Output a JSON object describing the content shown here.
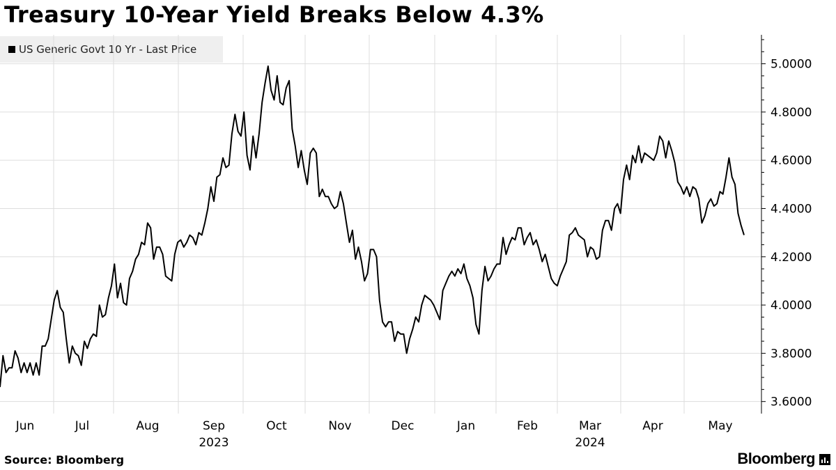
{
  "title": "Treasury 10-Year Yield Breaks Below 4.3%",
  "legend": {
    "label": "US Generic Govt 10 Yr - Last Price",
    "color": "#000000"
  },
  "footer": {
    "source": "Source: Bloomberg",
    "brand": "Bloomberg",
    "brand_icon": "bloomberg-logo-icon"
  },
  "chart_data": {
    "type": "line",
    "title": "Treasury 10-Year Yield Breaks Below 4.3%",
    "xlabel": "",
    "ylabel": "",
    "ylim": [
      3.55,
      5.12
    ],
    "y_ticks": [
      "3.6000",
      "3.8000",
      "4.0000",
      "4.2000",
      "4.4000",
      "4.6000",
      "4.8000",
      "5.0000"
    ],
    "x_ticks": [
      "Jun",
      "Jul",
      "Aug",
      "Sep",
      "Oct",
      "Nov",
      "Dec",
      "Jan",
      "Feb",
      "Mar",
      "Apr",
      "May"
    ],
    "year_labels": [
      {
        "label": "2023",
        "month": "Sep"
      },
      {
        "label": "2024",
        "month": "Mar"
      }
    ],
    "grid": true,
    "legend_position": "top-left",
    "series": [
      {
        "name": "US Generic Govt 10 Yr - Last Price",
        "color": "#000000",
        "values": [
          3.66,
          3.79,
          3.72,
          3.74,
          3.74,
          3.81,
          3.78,
          3.72,
          3.76,
          3.72,
          3.76,
          3.71,
          3.76,
          3.71,
          3.83,
          3.83,
          3.86,
          3.94,
          4.02,
          4.06,
          3.99,
          3.97,
          3.86,
          3.76,
          3.83,
          3.8,
          3.79,
          3.75,
          3.85,
          3.82,
          3.86,
          3.88,
          3.87,
          4.0,
          3.95,
          3.96,
          4.03,
          4.08,
          4.17,
          4.03,
          4.09,
          4.01,
          4.0,
          4.11,
          4.14,
          4.19,
          4.21,
          4.26,
          4.25,
          4.34,
          4.32,
          4.19,
          4.24,
          4.24,
          4.21,
          4.12,
          4.11,
          4.1,
          4.21,
          4.26,
          4.27,
          4.24,
          4.26,
          4.29,
          4.28,
          4.25,
          4.3,
          4.29,
          4.34,
          4.4,
          4.49,
          4.43,
          4.53,
          4.54,
          4.61,
          4.57,
          4.58,
          4.71,
          4.79,
          4.72,
          4.7,
          4.8,
          4.62,
          4.56,
          4.7,
          4.61,
          4.71,
          4.84,
          4.92,
          4.99,
          4.89,
          4.85,
          4.95,
          4.84,
          4.83,
          4.9,
          4.93,
          4.73,
          4.66,
          4.57,
          4.64,
          4.56,
          4.5,
          4.63,
          4.65,
          4.63,
          4.45,
          4.48,
          4.45,
          4.45,
          4.42,
          4.4,
          4.41,
          4.47,
          4.42,
          4.34,
          4.26,
          4.31,
          4.19,
          4.24,
          4.18,
          4.1,
          4.13,
          4.23,
          4.23,
          4.2,
          4.02,
          3.93,
          3.91,
          3.93,
          3.93,
          3.85,
          3.89,
          3.88,
          3.88,
          3.8,
          3.86,
          3.9,
          3.95,
          3.93,
          4.0,
          4.04,
          4.03,
          4.02,
          4.0,
          3.97,
          3.94,
          4.06,
          4.09,
          4.12,
          4.14,
          4.12,
          4.15,
          4.13,
          4.17,
          4.11,
          4.08,
          4.03,
          3.92,
          3.88,
          4.06,
          4.16,
          4.1,
          4.12,
          4.15,
          4.17,
          4.17,
          4.28,
          4.21,
          4.25,
          4.28,
          4.27,
          4.32,
          4.32,
          4.25,
          4.28,
          4.3,
          4.25,
          4.27,
          4.23,
          4.18,
          4.21,
          4.16,
          4.11,
          4.09,
          4.08,
          4.12,
          4.15,
          4.18,
          4.29,
          4.3,
          4.32,
          4.29,
          4.28,
          4.27,
          4.2,
          4.24,
          4.23,
          4.19,
          4.2,
          4.31,
          4.35,
          4.35,
          4.31,
          4.4,
          4.42,
          4.38,
          4.52,
          4.58,
          4.52,
          4.62,
          4.59,
          4.66,
          4.59,
          4.63,
          4.62,
          4.61,
          4.6,
          4.63,
          4.7,
          4.68,
          4.61,
          4.68,
          4.64,
          4.59,
          4.51,
          4.49,
          4.46,
          4.49,
          4.45,
          4.49,
          4.48,
          4.44,
          4.34,
          4.37,
          4.42,
          4.44,
          4.41,
          4.42,
          4.47,
          4.46,
          4.53,
          4.61,
          4.53,
          4.5,
          4.38,
          4.33,
          4.29
        ]
      }
    ]
  }
}
